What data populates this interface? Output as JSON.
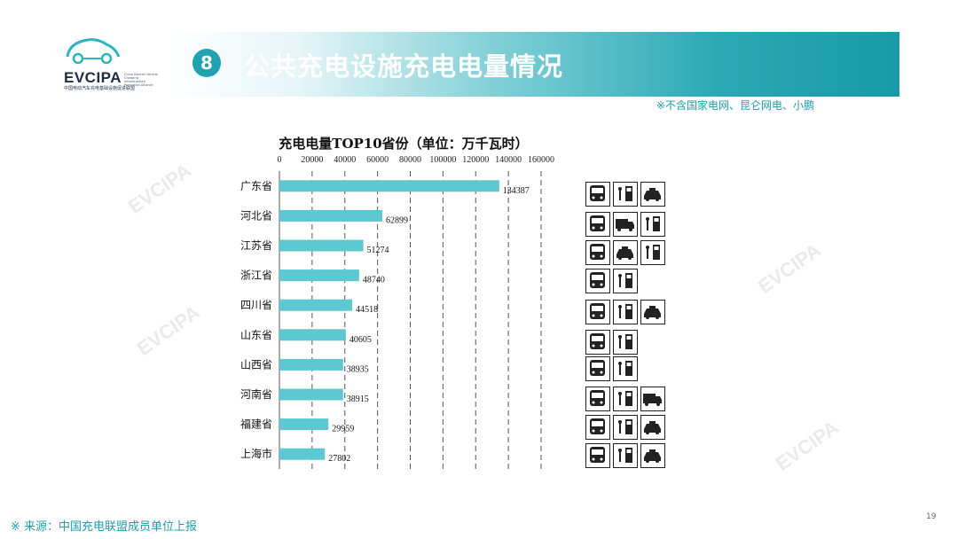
{
  "logo": {
    "wordmark": "EVCIPA",
    "tagline_en": "China Electric Vehicle Charging Infrastructure Promotion Alliance",
    "tagline_cn": "中国电动汽车充电基础设施促进联盟"
  },
  "header": {
    "section_number": "8",
    "title": "公共充电设施充电电量情况"
  },
  "note": "※不含国家电网、昆仑网电、小鹏",
  "watermark": "EVCIPA",
  "chart_data": {
    "type": "bar",
    "orientation": "horizontal",
    "title": "充电电量TOP10省份（单位：万千瓦时）",
    "categories": [
      "广东省",
      "河北省",
      "江苏省",
      "浙江省",
      "四川省",
      "山东省",
      "山西省",
      "河南省",
      "福建省",
      "上海市"
    ],
    "values": [
      134387,
      62899,
      51274,
      48740,
      44518,
      40605,
      38935,
      38915,
      29959,
      27802
    ],
    "xlim": [
      0,
      160000
    ],
    "xticks": [
      "0",
      "20000",
      "40000",
      "60000",
      "80000",
      "100000",
      "120000",
      "140000",
      "160000"
    ],
    "xaxis_position": "top",
    "grid": "dashed vertical",
    "bar_color": "#5bc8d2"
  },
  "icon_rows": [
    [
      "bus-icon",
      "charger-icon",
      "taxi-icon"
    ],
    [
      "bus-icon",
      "truck-icon",
      "charger-icon"
    ],
    [
      "bus-icon",
      "taxi-icon",
      "charger-icon"
    ],
    [
      "bus-icon",
      "charger-icon"
    ],
    [
      "bus-icon",
      "charger-icon",
      "taxi-icon"
    ],
    [
      "bus-icon",
      "charger-icon"
    ],
    [
      "bus-icon",
      "charger-icon"
    ],
    [
      "bus-icon",
      "charger-icon",
      "truck-icon"
    ],
    [
      "bus-icon",
      "charger-icon",
      "taxi-icon"
    ],
    [
      "bus-icon",
      "charger-icon",
      "taxi-icon"
    ]
  ],
  "footer": {
    "source": "※ 来源：中国充电联盟成员单位上报",
    "page": "19"
  }
}
